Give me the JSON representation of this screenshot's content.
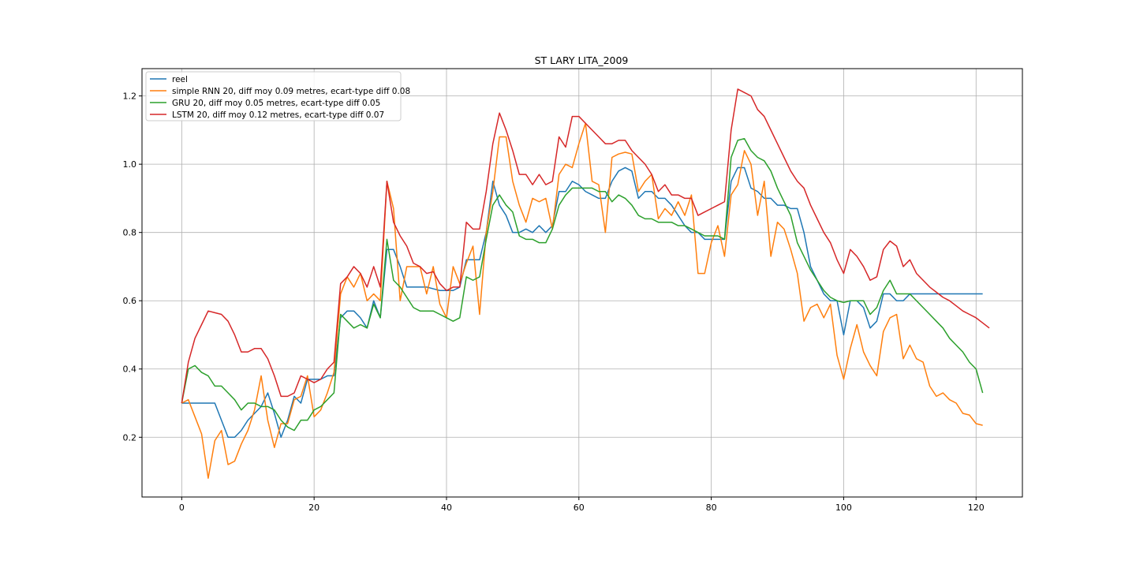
{
  "chart_data": {
    "type": "line",
    "title": "ST LARY LITA_2009",
    "xlabel": "",
    "ylabel": "",
    "xlim": [
      -6,
      127
    ],
    "ylim": [
      0.025,
      1.28
    ],
    "x_ticks": [
      0,
      20,
      40,
      60,
      80,
      100,
      120
    ],
    "y_ticks": [
      0.2,
      0.4,
      0.6,
      0.8,
      1.0,
      1.2
    ],
    "grid": true,
    "legend_position": "top-left",
    "series": [
      {
        "name": "reel",
        "color": "#1f77b4",
        "values": [
          0.3,
          0.3,
          0.3,
          0.3,
          0.3,
          0.3,
          0.25,
          0.2,
          0.2,
          0.22,
          0.25,
          0.27,
          0.29,
          0.33,
          0.27,
          0.2,
          0.25,
          0.32,
          0.3,
          0.37,
          0.37,
          0.37,
          0.38,
          0.38,
          0.55,
          0.57,
          0.57,
          0.55,
          0.52,
          0.6,
          0.55,
          0.75,
          0.75,
          0.7,
          0.64,
          0.64,
          0.64,
          0.64,
          0.635,
          0.63,
          0.63,
          0.63,
          0.64,
          0.72,
          0.72,
          0.72,
          0.8,
          0.95,
          0.88,
          0.85,
          0.8,
          0.8,
          0.81,
          0.8,
          0.82,
          0.8,
          0.82,
          0.92,
          0.92,
          0.95,
          0.94,
          0.92,
          0.91,
          0.9,
          0.9,
          0.95,
          0.98,
          0.99,
          0.98,
          0.9,
          0.92,
          0.92,
          0.9,
          0.9,
          0.88,
          0.85,
          0.82,
          0.8,
          0.8,
          0.78,
          0.78,
          0.78,
          0.78,
          0.95,
          0.99,
          0.99,
          0.93,
          0.92,
          0.9,
          0.9,
          0.88,
          0.88,
          0.87,
          0.87,
          0.8,
          0.7,
          0.66,
          0.62,
          0.6,
          0.6,
          0.5,
          0.6,
          0.6,
          0.58,
          0.52,
          0.54,
          0.62,
          0.62,
          0.6,
          0.6,
          0.62,
          0.62,
          0.62,
          0.62,
          0.62,
          0.62,
          0.62,
          0.62,
          0.62,
          0.62,
          0.62,
          0.62
        ]
      },
      {
        "name": "simple RNN 20, diff moy 0.09 metres, ecart-type diff 0.08",
        "color": "#ff7f0e",
        "values": [
          0.3,
          0.31,
          0.26,
          0.21,
          0.08,
          0.19,
          0.22,
          0.12,
          0.13,
          0.18,
          0.22,
          0.28,
          0.38,
          0.25,
          0.17,
          0.24,
          0.24,
          0.31,
          0.32,
          0.38,
          0.26,
          0.28,
          0.33,
          0.39,
          0.62,
          0.67,
          0.64,
          0.68,
          0.6,
          0.62,
          0.6,
          0.95,
          0.87,
          0.6,
          0.7,
          0.7,
          0.7,
          0.62,
          0.7,
          0.59,
          0.55,
          0.7,
          0.65,
          0.71,
          0.76,
          0.56,
          0.8,
          0.92,
          1.08,
          1.08,
          0.95,
          0.88,
          0.83,
          0.9,
          0.89,
          0.9,
          0.81,
          0.97,
          1.0,
          0.99,
          1.06,
          1.12,
          0.95,
          0.94,
          0.8,
          1.02,
          1.03,
          1.035,
          1.03,
          0.92,
          0.95,
          0.97,
          0.84,
          0.87,
          0.85,
          0.89,
          0.85,
          0.91,
          0.68,
          0.68,
          0.77,
          0.82,
          0.73,
          0.91,
          0.94,
          1.04,
          1.0,
          0.85,
          0.95,
          0.73,
          0.83,
          0.81,
          0.75,
          0.68,
          0.54,
          0.58,
          0.59,
          0.55,
          0.59,
          0.44,
          0.37,
          0.46,
          0.53,
          0.45,
          0.41,
          0.38,
          0.51,
          0.55,
          0.56,
          0.43,
          0.47,
          0.43,
          0.42,
          0.35,
          0.32,
          0.33,
          0.31,
          0.3,
          0.27,
          0.265,
          0.24,
          0.235
        ]
      },
      {
        "name": "GRU 20, diff moy 0.05 metres, ecart-type diff 0.05",
        "color": "#2ca02c",
        "values": [
          0.3,
          0.4,
          0.41,
          0.39,
          0.38,
          0.35,
          0.35,
          0.33,
          0.31,
          0.28,
          0.3,
          0.3,
          0.29,
          0.29,
          0.28,
          0.25,
          0.23,
          0.22,
          0.25,
          0.25,
          0.28,
          0.29,
          0.31,
          0.33,
          0.56,
          0.54,
          0.52,
          0.53,
          0.52,
          0.59,
          0.55,
          0.78,
          0.66,
          0.64,
          0.61,
          0.58,
          0.57,
          0.57,
          0.57,
          0.56,
          0.55,
          0.54,
          0.55,
          0.67,
          0.66,
          0.67,
          0.78,
          0.88,
          0.91,
          0.88,
          0.86,
          0.79,
          0.78,
          0.78,
          0.77,
          0.77,
          0.81,
          0.88,
          0.91,
          0.93,
          0.93,
          0.93,
          0.93,
          0.92,
          0.92,
          0.89,
          0.91,
          0.9,
          0.88,
          0.85,
          0.84,
          0.84,
          0.83,
          0.83,
          0.83,
          0.82,
          0.82,
          0.81,
          0.8,
          0.79,
          0.79,
          0.79,
          0.78,
          1.02,
          1.07,
          1.075,
          1.04,
          1.02,
          1.01,
          0.98,
          0.93,
          0.89,
          0.85,
          0.77,
          0.73,
          0.69,
          0.66,
          0.63,
          0.61,
          0.6,
          0.595,
          0.6,
          0.6,
          0.6,
          0.56,
          0.58,
          0.63,
          0.66,
          0.62,
          0.62,
          0.62,
          0.6,
          0.58,
          0.56,
          0.54,
          0.52,
          0.49,
          0.47,
          0.45,
          0.42,
          0.4,
          0.33
        ]
      },
      {
        "name": "LSTM 20, diff moy 0.12 metres, ecart-type diff 0.07",
        "color": "#d62728",
        "values": [
          0.3,
          0.42,
          0.49,
          0.53,
          0.57,
          0.565,
          0.56,
          0.54,
          0.5,
          0.45,
          0.45,
          0.46,
          0.46,
          0.43,
          0.38,
          0.32,
          0.32,
          0.33,
          0.38,
          0.37,
          0.36,
          0.37,
          0.4,
          0.42,
          0.65,
          0.67,
          0.7,
          0.68,
          0.64,
          0.7,
          0.64,
          0.95,
          0.83,
          0.79,
          0.76,
          0.71,
          0.7,
          0.68,
          0.685,
          0.65,
          0.63,
          0.64,
          0.64,
          0.83,
          0.81,
          0.81,
          0.92,
          1.06,
          1.15,
          1.1,
          1.04,
          0.97,
          0.97,
          0.94,
          0.97,
          0.94,
          0.95,
          1.08,
          1.05,
          1.14,
          1.14,
          1.12,
          1.1,
          1.08,
          1.06,
          1.06,
          1.07,
          1.07,
          1.04,
          1.02,
          1.0,
          0.97,
          0.92,
          0.94,
          0.91,
          0.91,
          0.9,
          0.9,
          0.85,
          0.86,
          0.87,
          0.88,
          0.89,
          1.1,
          1.22,
          1.21,
          1.2,
          1.16,
          1.14,
          1.1,
          1.06,
          1.02,
          0.98,
          0.95,
          0.93,
          0.88,
          0.84,
          0.8,
          0.77,
          0.72,
          0.68,
          0.75,
          0.73,
          0.7,
          0.66,
          0.67,
          0.75,
          0.775,
          0.76,
          0.7,
          0.72,
          0.68,
          0.66,
          0.64,
          0.625,
          0.61,
          0.6,
          0.585,
          0.57,
          0.56,
          0.55,
          0.535,
          0.52
        ]
      }
    ]
  }
}
